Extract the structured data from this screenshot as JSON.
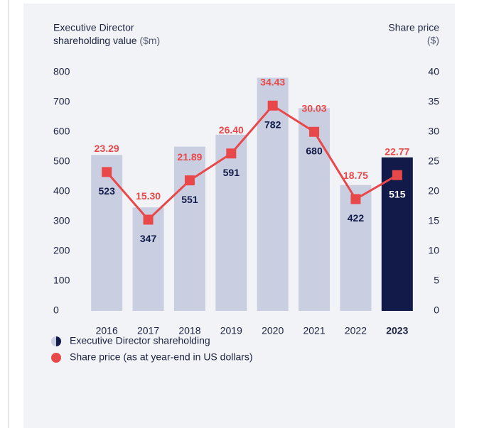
{
  "chart_data": {
    "type": "bar_line",
    "ylabel": [
      "Executive Director",
      "shareholding value",
      "($m)"
    ],
    "y2label": [
      "Share price",
      "($)"
    ],
    "categories": [
      "2016",
      "2017",
      "2018",
      "2019",
      "2020",
      "2021",
      "2022",
      "2023"
    ],
    "series": [
      {
        "name": "Executive Director shareholding",
        "type": "bar",
        "color": "#c9cfe0",
        "colors": [
          "#c9cfe0",
          "#c9cfe0",
          "#c9cfe0",
          "#c9cfe0",
          "#c9cfe0",
          "#c9cfe0",
          "#c9cfe0",
          "#111a48"
        ],
        "label_color": "#111a48",
        "values": [
          523,
          347,
          551,
          591,
          782,
          680,
          422,
          515
        ]
      },
      {
        "name": "Share price (as at year-end in US dollars)",
        "type": "line",
        "axis": "y2",
        "color": "#e8484a",
        "values": [
          23.29,
          15.3,
          21.89,
          26.4,
          34.43,
          30.03,
          18.75,
          22.77
        ],
        "value_labels": [
          "23.29",
          "15.30",
          "21.89",
          "26.40",
          "34.43",
          "30.03",
          "18.75",
          "22.77"
        ]
      }
    ],
    "ylim": [
      0,
      800
    ],
    "yticks": [
      0,
      100,
      200,
      300,
      400,
      500,
      600,
      700,
      800
    ],
    "y2lim": [
      0,
      40
    ],
    "y2ticks": [
      0,
      5,
      10,
      15,
      20,
      25,
      30,
      35,
      40
    ],
    "legend": "bottom-left"
  }
}
